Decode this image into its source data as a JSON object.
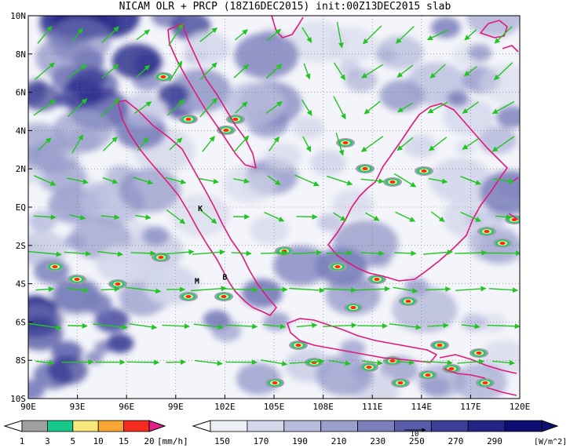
{
  "title": "NICAM OLR + PRCP (18Z16DEC2015) init:00Z13DEC2015 slab",
  "map": {
    "lon_range": [
      90,
      120
    ],
    "lat_range": [
      -10,
      10
    ],
    "x_ticks": [
      "90E",
      "93E",
      "96E",
      "99E",
      "102E",
      "105E",
      "108E",
      "111E",
      "114E",
      "117E",
      "120E"
    ],
    "y_ticks": [
      "10N",
      "8N",
      "6N",
      "4N",
      "2N",
      "EQ",
      "2S",
      "4S",
      "6S",
      "8S",
      "10S"
    ],
    "coast_color": "#e0197a",
    "arrow_color": "#22c422",
    "grid": "dotted",
    "labels": [
      {
        "text": "K",
        "lon": 100.5,
        "lat": -0.2
      },
      {
        "text": "M",
        "lon": 100.3,
        "lat": -4.0
      },
      {
        "text": "B",
        "lon": 102.0,
        "lat": -3.8
      }
    ]
  },
  "legend_prcp": {
    "ticks": [
      "1",
      "3",
      "5",
      "10",
      "15",
      "20"
    ],
    "unit": "[mm/h]",
    "colors": [
      "#ffffff",
      "#a0a0a0",
      "#16c98a",
      "#f7e979",
      "#f9a533",
      "#f42b1d",
      "#e81d8c"
    ]
  },
  "legend_olr": {
    "ticks": [
      "150",
      "170",
      "190",
      "210",
      "230",
      "250",
      "270",
      "290"
    ],
    "unit": "[W/m^2]",
    "colors": [
      "#ffffff",
      "#eceef6",
      "#d4d7ea",
      "#b8bcdc",
      "#9a9fcc",
      "#7a7fbb",
      "#5a5eaa",
      "#3c3f98",
      "#222486",
      "#0f0f73"
    ],
    "ref_label": "10"
  }
}
